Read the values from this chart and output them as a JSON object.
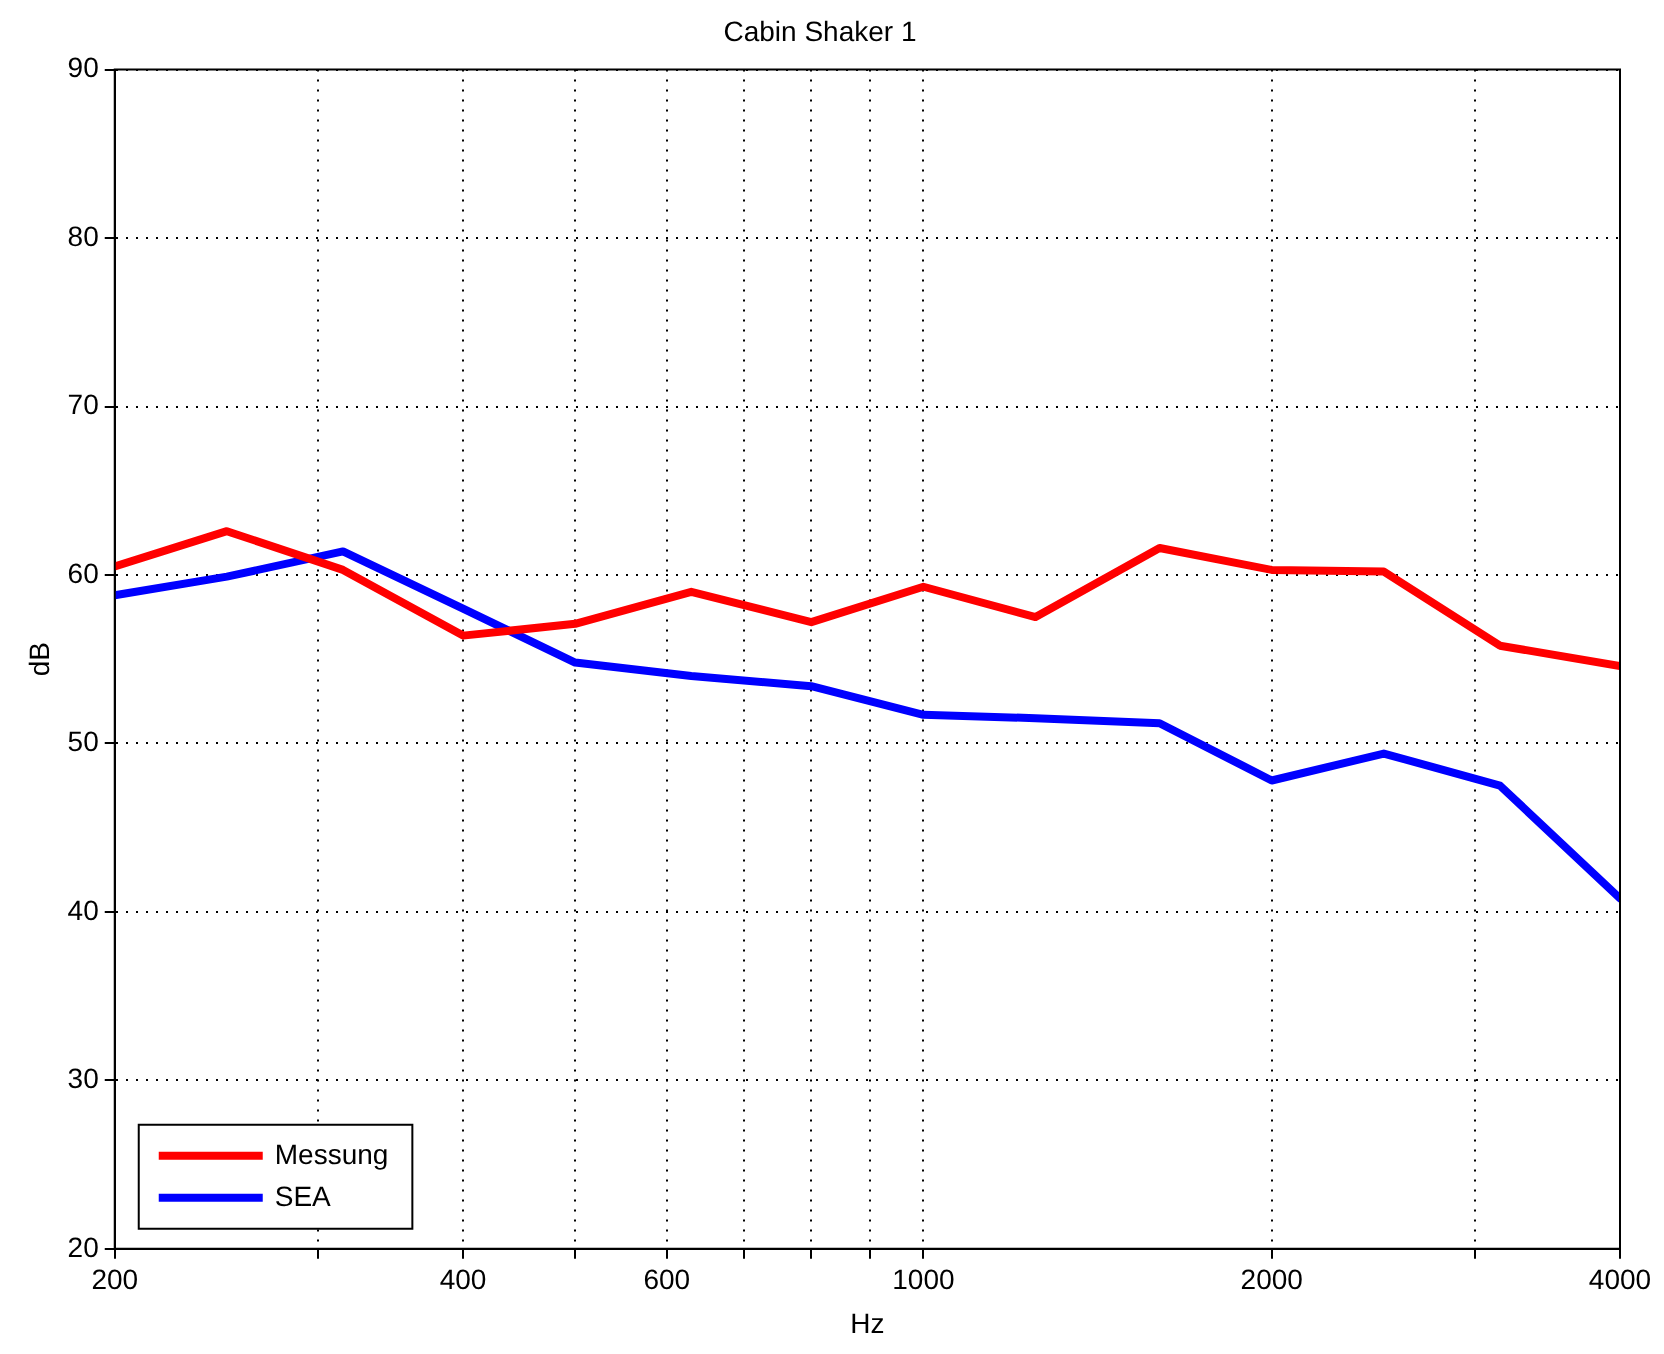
{
  "chart_data": {
    "type": "line",
    "title": "Cabin Shaker 1",
    "xlabel": "Hz",
    "ylabel": "dB",
    "log": "x",
    "x": [
      200,
      250,
      315,
      400,
      500,
      630,
      800,
      1000,
      1250,
      1600,
      2000,
      2500,
      3150,
      4000
    ],
    "series": [
      {
        "name": "Messung",
        "color": "#ff0000",
        "values": [
          60.5,
          62.6,
          60.3,
          56.4,
          57.1,
          59,
          57.2,
          59.3,
          57.5,
          61.6,
          60.3,
          60.2,
          55.8,
          54.6
        ]
      },
      {
        "name": "SEA",
        "color": "#0000ff",
        "values": [
          58.8,
          59.9,
          61.4,
          58,
          54.8,
          54,
          53.4,
          51.7,
          51.5,
          51.2,
          47.8,
          49.4,
          47.5,
          40.8
        ]
      }
    ],
    "xlim": [
      200,
      4000
    ],
    "xticks": [
      200,
      {
        "value": 300,
        "label": null
      },
      400,
      {
        "value": 500,
        "label": null
      },
      600,
      {
        "value": 700,
        "label": null
      },
      {
        "value": 800,
        "label": null
      },
      {
        "value": 900,
        "label": null
      },
      1000,
      2000,
      {
        "value": 3000,
        "label": null
      },
      4000
    ],
    "ylim": [
      20,
      90
    ],
    "yticks": [
      20,
      30,
      40,
      50,
      60,
      70,
      80,
      90
    ],
    "grid": true,
    "legend": "bottom left",
    "marker": "none",
    "line_style": "solid"
  }
}
